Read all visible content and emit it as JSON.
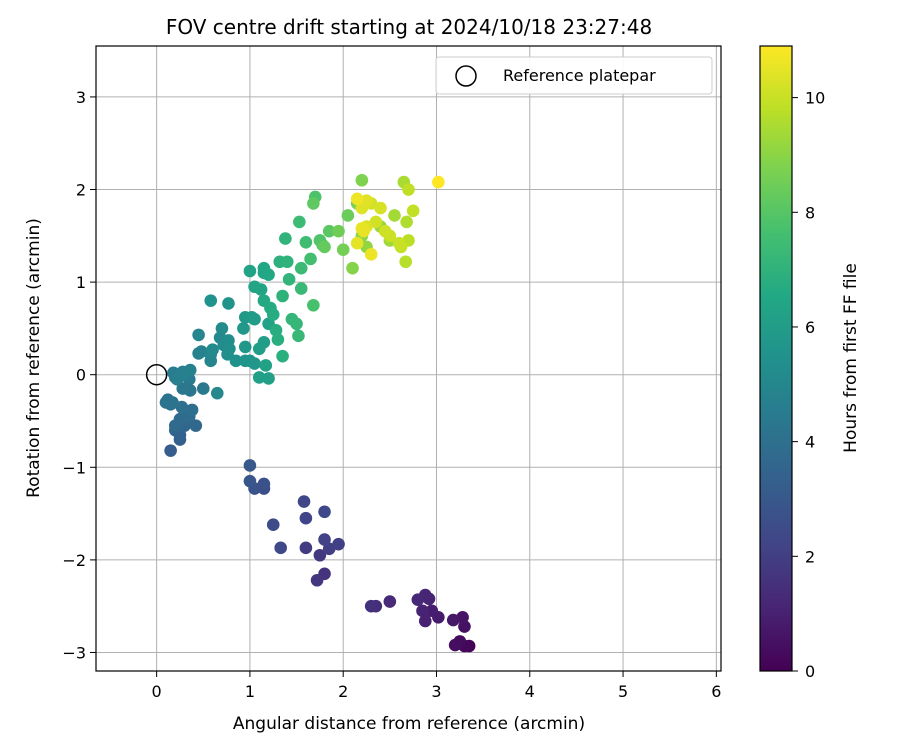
{
  "chart_data": {
    "type": "scatter",
    "title": "FOV centre drift starting at 2024/10/18 23:27:48",
    "xlabel": "Angular distance from reference (arcmin)",
    "ylabel": "Rotation from reference (arcmin)",
    "xlim": [
      -0.65,
      6.05
    ],
    "ylim": [
      -3.2,
      3.55
    ],
    "xticks": [
      0,
      1,
      2,
      3,
      4,
      5,
      6
    ],
    "yticks": [
      -3,
      -2,
      -1,
      0,
      1,
      2,
      3
    ],
    "xtick_labels": [
      "0",
      "1",
      "2",
      "3",
      "4",
      "5",
      "6"
    ],
    "ytick_labels": [
      "−3",
      "−2",
      "−1",
      "0",
      "1",
      "2",
      "3"
    ],
    "grid": true,
    "legend": {
      "placement": "top-right",
      "entries": [
        "Reference platepar"
      ]
    },
    "reference_point": {
      "name": "Reference platepar",
      "x": 0,
      "y": 0,
      "marker": "open-circle"
    },
    "colorbar": {
      "label": "Hours from first FF file",
      "colormap": "viridis",
      "range": [
        0,
        10.9
      ],
      "ticks": [
        0,
        2,
        4,
        6,
        8,
        10
      ],
      "tick_labels": [
        "0",
        "2",
        "4",
        "6",
        "8",
        "10"
      ]
    },
    "points": [
      [
        3.35,
        -2.93,
        0.1
      ],
      [
        3.3,
        -2.93,
        0.2
      ],
      [
        3.25,
        -2.88,
        0.3
      ],
      [
        3.2,
        -2.92,
        0.4
      ],
      [
        3.3,
        -2.72,
        0.5
      ],
      [
        3.28,
        -2.62,
        0.6
      ],
      [
        3.18,
        -2.65,
        0.7
      ],
      [
        3.02,
        -2.62,
        0.8
      ],
      [
        2.95,
        -2.55,
        0.9
      ],
      [
        2.88,
        -2.66,
        1.0
      ],
      [
        2.85,
        -2.55,
        1.05
      ],
      [
        2.92,
        -2.42,
        1.1
      ],
      [
        2.88,
        -2.38,
        1.15
      ],
      [
        2.8,
        -2.43,
        1.2
      ],
      [
        2.5,
        -2.45,
        1.3
      ],
      [
        2.35,
        -2.5,
        1.4
      ],
      [
        2.3,
        -2.5,
        1.5
      ],
      [
        1.8,
        -2.15,
        1.6
      ],
      [
        1.72,
        -2.22,
        1.7
      ],
      [
        1.75,
        -1.95,
        1.8
      ],
      [
        1.6,
        -1.87,
        1.9
      ],
      [
        1.85,
        -1.88,
        2.0
      ],
      [
        1.95,
        -1.83,
        2.05
      ],
      [
        1.8,
        -1.78,
        2.1
      ],
      [
        1.6,
        -1.55,
        2.2
      ],
      [
        1.58,
        -1.37,
        2.3
      ],
      [
        1.8,
        -1.48,
        2.35
      ],
      [
        1.33,
        -1.87,
        2.4
      ],
      [
        1.25,
        -1.62,
        2.5
      ],
      [
        1.15,
        -1.23,
        2.6
      ],
      [
        1.15,
        -1.18,
        2.7
      ],
      [
        1.05,
        -1.23,
        2.8
      ],
      [
        1.0,
        -1.15,
        2.9
      ],
      [
        1.0,
        -0.98,
        3.0
      ],
      [
        0.15,
        -0.82,
        3.2
      ],
      [
        0.25,
        -0.7,
        3.3
      ],
      [
        0.25,
        -0.65,
        3.4
      ],
      [
        0.2,
        -0.6,
        3.5
      ],
      [
        0.3,
        -0.55,
        3.6
      ],
      [
        0.42,
        -0.55,
        3.7
      ],
      [
        0.2,
        -0.55,
        3.75
      ],
      [
        0.25,
        -0.48,
        3.8
      ],
      [
        0.35,
        -0.45,
        3.85
      ],
      [
        0.3,
        -0.4,
        3.9
      ],
      [
        0.38,
        -0.38,
        3.95
      ],
      [
        0.27,
        -0.35,
        4.0
      ],
      [
        0.15,
        -0.32,
        4.05
      ],
      [
        0.1,
        -0.3,
        4.1
      ],
      [
        0.17,
        -0.3,
        4.15
      ],
      [
        0.12,
        -0.27,
        4.2
      ],
      [
        0.36,
        -0.17,
        4.25
      ],
      [
        0.28,
        -0.15,
        4.3
      ],
      [
        0.5,
        -0.15,
        4.35
      ],
      [
        0.35,
        -0.05,
        4.4
      ],
      [
        0.2,
        -0.03,
        4.45
      ],
      [
        0.25,
        0.0,
        4.5
      ],
      [
        0.18,
        0.02,
        4.55
      ],
      [
        0.28,
        0.03,
        4.6
      ],
      [
        0.22,
        -0.05,
        4.65
      ],
      [
        0.3,
        0.01,
        4.7
      ],
      [
        0.36,
        0.05,
        4.75
      ],
      [
        0.45,
        0.23,
        4.8
      ],
      [
        0.48,
        0.25,
        4.85
      ],
      [
        0.58,
        0.15,
        4.9
      ],
      [
        0.58,
        0.22,
        4.95
      ],
      [
        0.45,
        0.43,
        5.0
      ],
      [
        0.65,
        -0.2,
        5.05
      ],
      [
        0.68,
        0.4,
        5.1
      ],
      [
        0.6,
        0.27,
        5.15
      ],
      [
        0.7,
        0.5,
        5.2
      ],
      [
        0.72,
        0.32,
        5.25
      ],
      [
        0.77,
        0.37,
        5.3
      ],
      [
        0.78,
        0.28,
        5.35
      ],
      [
        0.76,
        0.22,
        5.4
      ],
      [
        0.85,
        0.15,
        5.45
      ],
      [
        0.58,
        0.8,
        5.5
      ],
      [
        0.77,
        0.77,
        5.55
      ],
      [
        0.95,
        0.15,
        5.6
      ],
      [
        1.0,
        0.15,
        5.65
      ],
      [
        1.05,
        0.12,
        5.7
      ],
      [
        0.95,
        0.3,
        5.75
      ],
      [
        0.93,
        0.5,
        5.8
      ],
      [
        0.95,
        0.62,
        5.85
      ],
      [
        1.02,
        0.62,
        5.9
      ],
      [
        1.05,
        0.6,
        5.95
      ],
      [
        1.1,
        0.28,
        6.0
      ],
      [
        1.15,
        0.35,
        6.05
      ],
      [
        1.1,
        -0.03,
        6.1
      ],
      [
        1.2,
        -0.04,
        6.15
      ],
      [
        1.17,
        0.1,
        6.2
      ],
      [
        1.2,
        0.55,
        6.25
      ],
      [
        1.0,
        1.12,
        6.3
      ],
      [
        1.05,
        0.95,
        6.35
      ],
      [
        1.12,
        0.92,
        6.4
      ],
      [
        1.15,
        1.1,
        6.45
      ],
      [
        1.15,
        1.15,
        6.5
      ],
      [
        1.2,
        1.08,
        6.55
      ],
      [
        1.15,
        0.8,
        6.6
      ],
      [
        1.22,
        0.72,
        6.65
      ],
      [
        1.25,
        0.65,
        6.7
      ],
      [
        1.28,
        0.48,
        6.75
      ],
      [
        1.3,
        0.38,
        6.8
      ],
      [
        1.35,
        0.2,
        6.85
      ],
      [
        1.32,
        1.22,
        6.9
      ],
      [
        1.35,
        0.85,
        6.95
      ],
      [
        1.4,
        1.22,
        7.0
      ],
      [
        1.38,
        1.47,
        7.05
      ],
      [
        1.42,
        1.03,
        7.1
      ],
      [
        1.45,
        0.6,
        7.15
      ],
      [
        1.5,
        0.55,
        7.2
      ],
      [
        1.52,
        0.42,
        7.25
      ],
      [
        1.55,
        0.93,
        7.3
      ],
      [
        1.55,
        1.15,
        7.35
      ],
      [
        1.53,
        1.65,
        7.4
      ],
      [
        1.6,
        1.43,
        7.5
      ],
      [
        1.65,
        1.25,
        7.6
      ],
      [
        1.68,
        0.75,
        7.7
      ],
      [
        1.7,
        1.92,
        7.8
      ],
      [
        1.75,
        1.45,
        7.9
      ],
      [
        1.78,
        1.4,
        8.0
      ],
      [
        1.85,
        1.55,
        8.1
      ],
      [
        1.68,
        1.85,
        8.2
      ],
      [
        1.8,
        1.38,
        8.3
      ],
      [
        2.05,
        1.72,
        8.4
      ],
      [
        1.95,
        1.55,
        8.5
      ],
      [
        2.0,
        1.35,
        8.6
      ],
      [
        2.15,
        1.85,
        8.7
      ],
      [
        2.2,
        2.1,
        8.8
      ],
      [
        2.1,
        1.15,
        8.9
      ],
      [
        2.2,
        1.5,
        9.0
      ],
      [
        2.25,
        1.38,
        9.1
      ],
      [
        2.4,
        1.6,
        9.2
      ],
      [
        2.5,
        1.45,
        9.3
      ],
      [
        2.55,
        1.72,
        9.4
      ],
      [
        2.65,
        2.08,
        9.5
      ],
      [
        2.68,
        1.65,
        9.6
      ],
      [
        2.67,
        1.22,
        9.7
      ],
      [
        2.7,
        1.45,
        9.8
      ],
      [
        2.7,
        2.0,
        9.85
      ],
      [
        2.75,
        1.77,
        9.9
      ],
      [
        2.62,
        1.38,
        9.95
      ],
      [
        2.6,
        1.42,
        10.0
      ],
      [
        2.5,
        1.5,
        10.05
      ],
      [
        2.45,
        1.55,
        10.1
      ],
      [
        2.35,
        1.65,
        10.15
      ],
      [
        2.3,
        1.85,
        10.2
      ],
      [
        2.4,
        1.8,
        10.25
      ],
      [
        2.25,
        1.6,
        10.3
      ],
      [
        2.2,
        1.8,
        10.35
      ],
      [
        2.25,
        1.88,
        10.4
      ],
      [
        2.15,
        1.42,
        10.45
      ],
      [
        2.2,
        1.58,
        10.5
      ],
      [
        2.22,
        1.55,
        10.55
      ],
      [
        2.3,
        1.3,
        10.6
      ],
      [
        2.15,
        1.9,
        10.65
      ],
      [
        3.02,
        2.08,
        10.9
      ]
    ]
  }
}
